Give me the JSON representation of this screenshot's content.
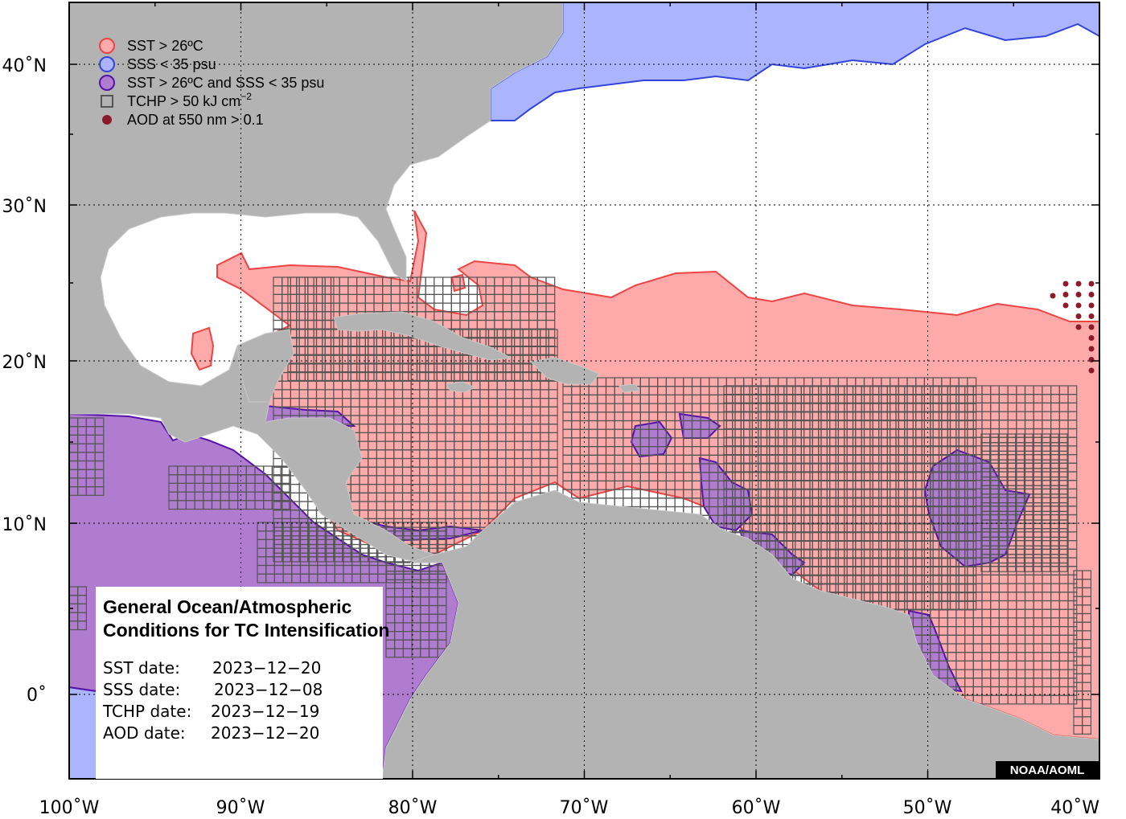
{
  "map": {
    "y_axis_labels": [
      "40˚N",
      "30˚N",
      "20˚N",
      "10˚N",
      "0˚"
    ],
    "x_axis_labels": [
      "100˚W",
      "90˚W",
      "80˚W",
      "70˚W",
      "60˚W",
      "50˚W",
      "40˚W"
    ],
    "extent": {
      "lon": [
        -100,
        -40
      ],
      "lat": [
        -5.5,
        44
      ]
    }
  },
  "legend": {
    "items": [
      {
        "label": "SST > 26ºC",
        "symbol": "circle",
        "fill": "#ffaaaa",
        "stroke": "#ee4444"
      },
      {
        "label": "SSS < 35 psu",
        "symbol": "circle",
        "fill": "#aab4ff",
        "stroke": "#3344dd"
      },
      {
        "label": "SST > 26ºC and SSS < 35 psu",
        "symbol": "circle",
        "fill": "#b07cd0",
        "stroke": "#5511aa"
      },
      {
        "label": "TCHP > 50 kJ cm",
        "sup": "−2",
        "symbol": "square",
        "fill": "none",
        "stroke": "#555555"
      },
      {
        "label": "AOD at 550 nm > 0.1",
        "symbol": "dot",
        "fill": "#8b1a2b",
        "stroke": "#8b1a2b"
      }
    ]
  },
  "info": {
    "title_line1": "General Ocean/Atmospheric",
    "title_line2": "Conditions for TC Intensification",
    "dates": [
      {
        "label": "SST date:",
        "value": "2023−12−20"
      },
      {
        "label": "SSS date:",
        "value": "2023−12−08"
      },
      {
        "label": "TCHP date:",
        "value": "2023−12−19"
      },
      {
        "label": "AOD date:",
        "value": "2023−12−20"
      }
    ]
  },
  "credit": "NOAA/AOML",
  "colors": {
    "land": "#b3b3b3",
    "ocean": "#ffffff",
    "sst": "#ffaaaa",
    "sst_edge": "#ee4444",
    "sss": "#aab4ff",
    "sss_edge": "#3344dd",
    "both": "#b07cd0",
    "both_edge": "#5511aa",
    "tchp_grid": "#555555",
    "aod": "#8b1a2b"
  }
}
